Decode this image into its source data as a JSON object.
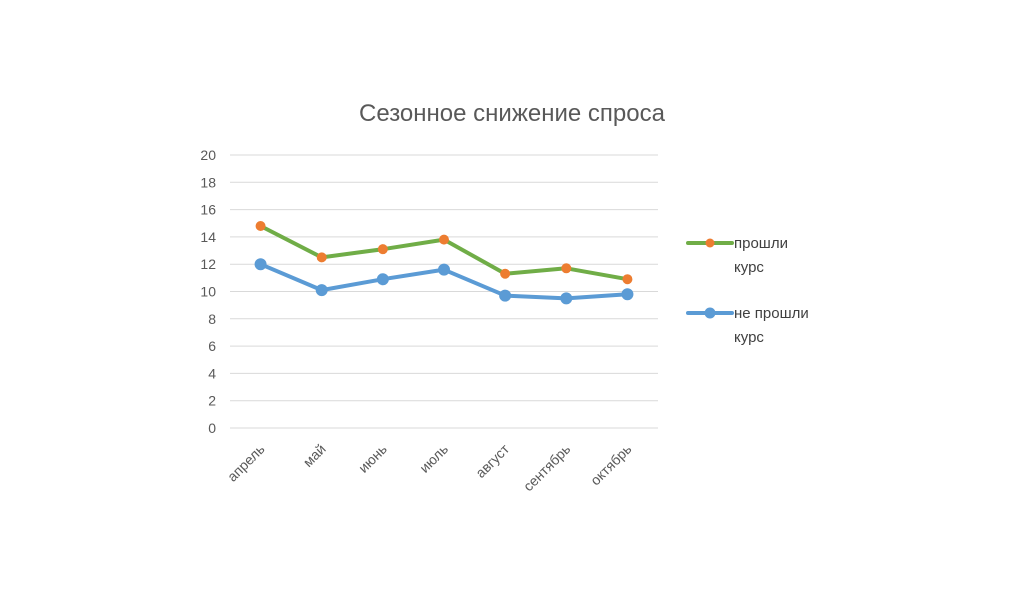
{
  "chart_data": {
    "type": "line",
    "title": "Сезонное снижение спроса",
    "xlabel": "",
    "ylabel": "",
    "categories": [
      "апрель",
      "май",
      "июнь",
      "июль",
      "август",
      "сентябрь",
      "октябрь"
    ],
    "ylim": [
      0,
      20
    ],
    "yticks": [
      "0",
      "2",
      "4",
      "6",
      "8",
      "10",
      "12",
      "14",
      "16",
      "18",
      "20"
    ],
    "grid": true,
    "legend_position": "right",
    "series": [
      {
        "name": "прошли курс",
        "name_lines": [
          "прошли",
          "курс"
        ],
        "values": [
          14.8,
          12.5,
          13.1,
          13.8,
          11.3,
          11.7,
          10.9
        ],
        "line_color": "#70ad47",
        "marker_color": "#ed7d31"
      },
      {
        "name": "не прошли курс",
        "name_lines": [
          "не прошли",
          "курс"
        ],
        "values": [
          12.0,
          10.1,
          10.9,
          11.6,
          9.7,
          9.5,
          9.8
        ],
        "line_color": "#5b9bd5",
        "marker_color": "#5b9bd5"
      }
    ]
  }
}
